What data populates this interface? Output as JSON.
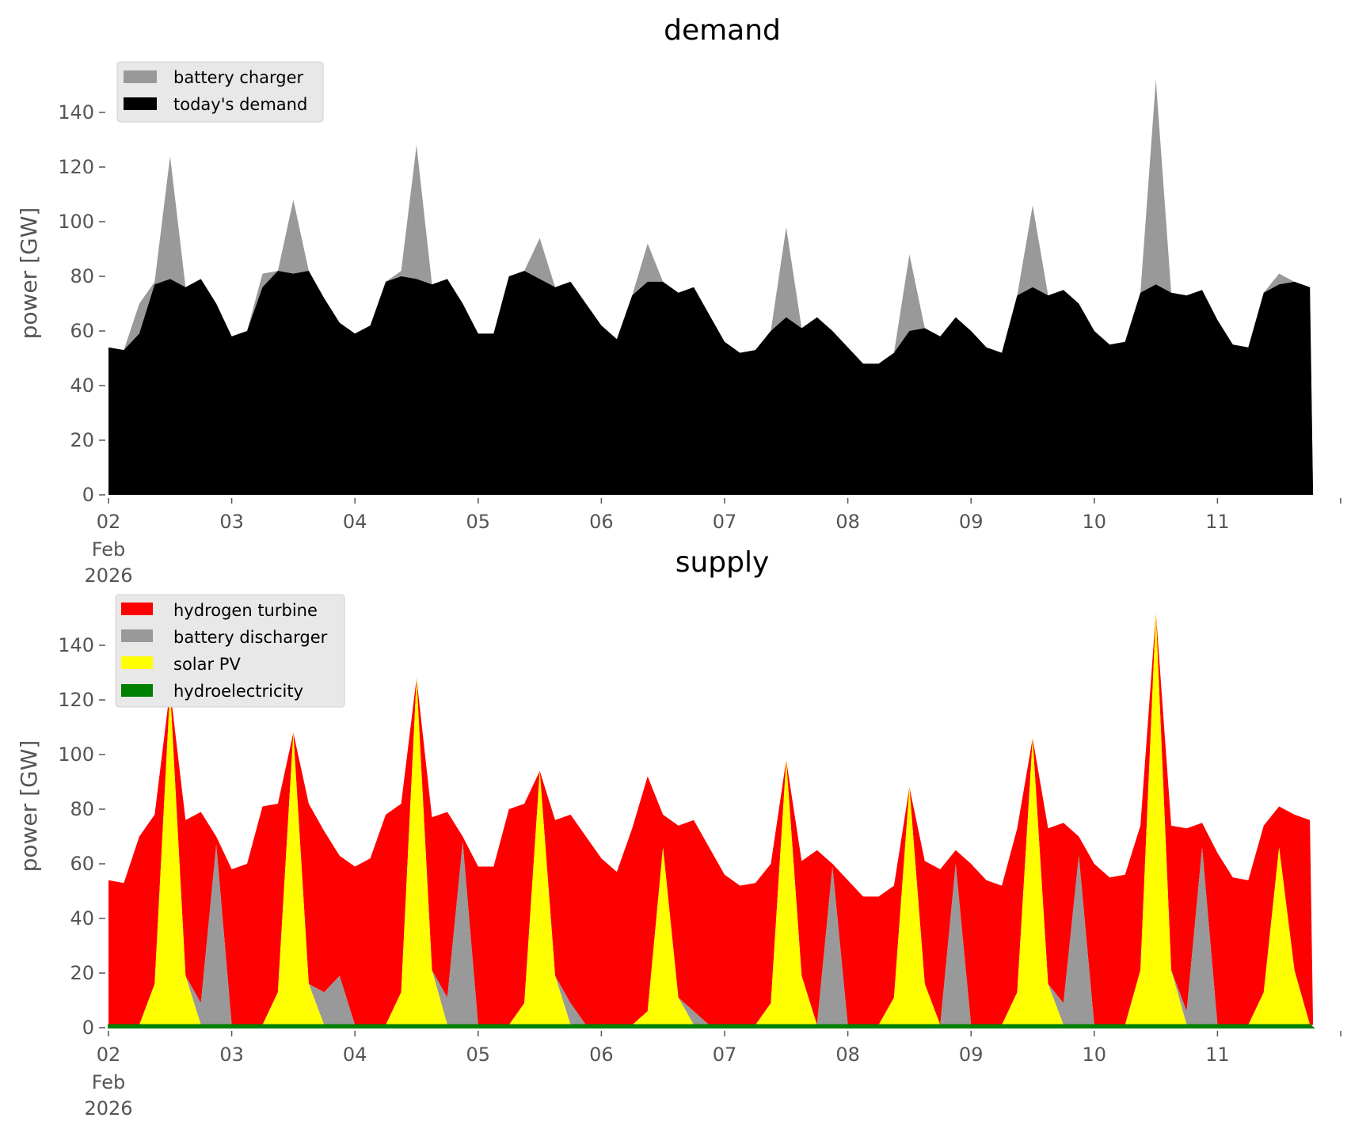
{
  "chart_data": [
    {
      "type": "area",
      "title": "demand",
      "ylabel": "power [GW]",
      "xlabel": "",
      "ylim": [
        0,
        155
      ],
      "yticks": [
        "0",
        "20",
        "40",
        "60",
        "80",
        "100",
        "120",
        "140"
      ],
      "ytick_values": [
        0,
        20,
        40,
        60,
        80,
        100,
        120,
        140
      ],
      "xticks": [
        "02",
        "03",
        "04",
        "05",
        "06",
        "07",
        "08",
        "09",
        "10",
        "11"
      ],
      "xtick_sub": [
        "Feb",
        "2026"
      ],
      "x_unit": "days since 2026-02-02 00:00, 3-hourly",
      "legend_position": "upper-left",
      "series": [
        {
          "name": "battery charger",
          "color": "#999999",
          "values": [
            0,
            0,
            11,
            1,
            45,
            0,
            0,
            0,
            0,
            0,
            5,
            0,
            27,
            0,
            0,
            0,
            0,
            0,
            0,
            2,
            49,
            0,
            0,
            0,
            0,
            0,
            0,
            0,
            15,
            0,
            0,
            0,
            0,
            0,
            0,
            14,
            0,
            0,
            0,
            0,
            0,
            0,
            0,
            0,
            33,
            0,
            0,
            0,
            0,
            0,
            0,
            0,
            28,
            0,
            0,
            0,
            0,
            0,
            0,
            0,
            30,
            0,
            0,
            0,
            0,
            0,
            0,
            0,
            75,
            0,
            0,
            0,
            0,
            0,
            0,
            0,
            4,
            0,
            0
          ]
        },
        {
          "name": "today's demand",
          "color": "#000000",
          "values": [
            54,
            53,
            59,
            77,
            79,
            76,
            79,
            70,
            58,
            60,
            76,
            82,
            81,
            82,
            72,
            63,
            59,
            62,
            78,
            80,
            79,
            77,
            79,
            70,
            59,
            59,
            80,
            82,
            79,
            76,
            78,
            70,
            62,
            57,
            73,
            78,
            78,
            74,
            76,
            66,
            56,
            52,
            53,
            60,
            65,
            61,
            65,
            60,
            54,
            48,
            48,
            52,
            60,
            61,
            58,
            65,
            60,
            54,
            52,
            73,
            76,
            73,
            75,
            70,
            60,
            55,
            56,
            74,
            77,
            74,
            73,
            75,
            64,
            55,
            54,
            74,
            77,
            78,
            76
          ]
        }
      ]
    },
    {
      "type": "area",
      "title": "supply",
      "ylabel": "power [GW]",
      "xlabel": "",
      "ylim": [
        0,
        155
      ],
      "yticks": [
        "0",
        "20",
        "40",
        "60",
        "80",
        "100",
        "120",
        "140"
      ],
      "ytick_values": [
        0,
        20,
        40,
        60,
        80,
        100,
        120,
        140
      ],
      "xticks": [
        "02",
        "03",
        "04",
        "05",
        "06",
        "07",
        "08",
        "09",
        "10",
        "11"
      ],
      "xtick_sub": [
        "Feb",
        "2026"
      ],
      "x_unit": "days since 2026-02-02 00:00, 3-hourly",
      "legend_position": "upper-left",
      "stack_order": [
        "hydroelectricity",
        "solar PV",
        "battery discharger",
        "hydrogen turbine"
      ],
      "series": [
        {
          "name": "hydrogen turbine",
          "color": "#ff0000",
          "values": "remainder"
        },
        {
          "name": "battery discharger",
          "color": "#999999",
          "values": [
            0,
            0,
            0,
            0,
            0,
            0,
            8,
            66,
            0,
            0,
            0,
            0,
            0,
            0,
            12,
            18,
            0,
            0,
            0,
            0,
            0,
            0,
            10,
            67,
            0,
            0,
            0,
            0,
            0,
            0,
            8,
            0,
            0,
            0,
            0,
            0,
            0,
            0,
            5,
            0,
            0,
            0,
            0,
            0,
            0,
            0,
            0,
            58,
            0,
            0,
            0,
            0,
            0,
            0,
            0,
            59,
            0,
            0,
            0,
            0,
            0,
            0,
            8,
            62,
            0,
            0,
            0,
            0,
            0,
            0,
            5,
            65,
            0,
            0,
            0,
            0,
            0,
            0,
            0
          ]
        },
        {
          "name": "solar PV",
          "color": "#ffff00",
          "values": [
            0,
            0,
            0,
            15,
            123,
            18,
            0,
            0,
            0,
            0,
            0,
            12,
            107,
            15,
            0,
            0,
            0,
            0,
            0,
            12,
            127,
            20,
            0,
            0,
            0,
            0,
            0,
            8,
            93,
            18,
            0,
            0,
            0,
            0,
            0,
            5,
            65,
            10,
            0,
            0,
            0,
            0,
            0,
            8,
            97,
            18,
            0,
            0,
            0,
            0,
            0,
            10,
            87,
            15,
            0,
            0,
            0,
            0,
            0,
            12,
            105,
            15,
            0,
            0,
            0,
            0,
            0,
            20,
            151,
            20,
            0,
            0,
            0,
            0,
            0,
            12,
            65,
            20,
            0
          ]
        },
        {
          "name": "hydroelectricity",
          "color": "#008000",
          "values": [
            1,
            1,
            1,
            1,
            1,
            1,
            1,
            1,
            1,
            1,
            1,
            1,
            1,
            1,
            1,
            1,
            1,
            1,
            1,
            1,
            1,
            1,
            1,
            1,
            1,
            1,
            1,
            1,
            1,
            1,
            1,
            1,
            1,
            1,
            1,
            1,
            1,
            1,
            1,
            1,
            1,
            1,
            1,
            1,
            1,
            1,
            1,
            1,
            1,
            1,
            1,
            1,
            1,
            1,
            1,
            1,
            1,
            1,
            1,
            1,
            1,
            1,
            1,
            1,
            1,
            1,
            1,
            1,
            1,
            1,
            1,
            1,
            1,
            1,
            1,
            1,
            1,
            1,
            1
          ]
        }
      ]
    }
  ]
}
